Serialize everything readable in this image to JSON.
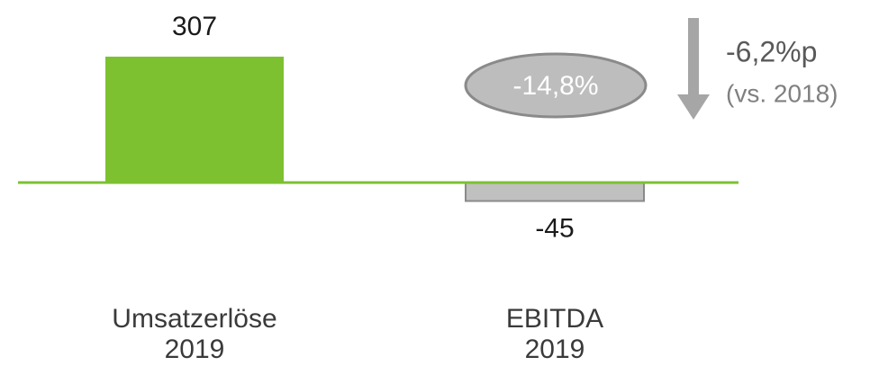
{
  "chart_data": {
    "type": "bar",
    "categories": [
      "Umsatzerlöse\n2019",
      "EBITDA\n2019"
    ],
    "values": [
      307,
      -45
    ],
    "colors": [
      "#7dc131",
      "#c0c0c0"
    ],
    "annotations": [
      "-14,8%",
      "-6,2%p",
      "(vs. 2018)"
    ]
  }
}
